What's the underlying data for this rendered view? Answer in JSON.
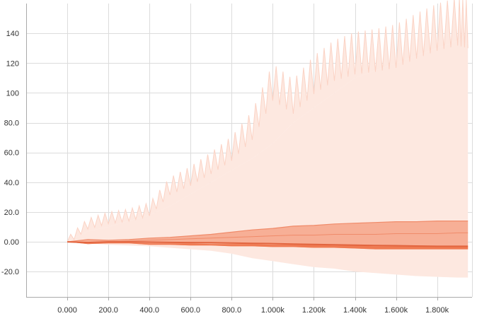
{
  "chart_data": {
    "type": "area",
    "title": "",
    "xlabel": "",
    "ylabel": "",
    "xlim": [
      -200,
      1970
    ],
    "ylim": [
      -37,
      160
    ],
    "grid": true,
    "legend": "none",
    "x_ticks": [
      {
        "value": 0,
        "label": "0.000"
      },
      {
        "value": 200,
        "label": "200.0"
      },
      {
        "value": 400,
        "label": "400.0"
      },
      {
        "value": 600,
        "label": "600.0"
      },
      {
        "value": 800,
        "label": "800.0"
      },
      {
        "value": 1000,
        "label": "1.000k"
      },
      {
        "value": 1200,
        "label": "1.200k"
      },
      {
        "value": 1400,
        "label": "1.400k"
      },
      {
        "value": 1600,
        "label": "1.600k"
      },
      {
        "value": 1800,
        "label": "1.800k"
      }
    ],
    "y_ticks": [
      {
        "value": -20,
        "label": "-20.0"
      },
      {
        "value": 0,
        "label": "0.00"
      },
      {
        "value": 20,
        "label": "20.0"
      },
      {
        "value": 40,
        "label": "40.0"
      },
      {
        "value": 60,
        "label": "60.0"
      },
      {
        "value": 80,
        "label": "80.0"
      },
      {
        "value": 100,
        "label": "100"
      },
      {
        "value": 120,
        "label": "120"
      },
      {
        "value": 140,
        "label": "140"
      }
    ],
    "colors": {
      "band_outer": "#fde8e0",
      "band_outer_edge": "#fbd3c5",
      "band_mid": "#f6a98e",
      "band_mid_edge": "#f08b6a",
      "band_inner": "#ef7a52",
      "median": "#e2653f"
    },
    "x": [
      0,
      100,
      200,
      300,
      400,
      500,
      600,
      700,
      800,
      900,
      1000,
      1100,
      1200,
      1300,
      1400,
      1500,
      1600,
      1700,
      1800,
      1900,
      1950
    ],
    "series": [
      {
        "values": [
          0,
          7,
          10,
          14,
          18,
          24,
          32,
          40,
          48,
          56,
          66,
          80,
          90,
          100,
          110,
          115,
          120,
          125,
          130,
          135,
          140
        ]
      },
      {
        "values": [
          0,
          12,
          16,
          18,
          22,
          38,
          45,
          54,
          64,
          80,
          110,
          100,
          115,
          125,
          130,
          132,
          135,
          142,
          148,
          152,
          150
        ]
      },
      {
        "values": [
          0,
          -1,
          -2,
          -2.5,
          -3,
          -4,
          -5,
          -6,
          -8,
          -11,
          -13,
          -15,
          -17,
          -18,
          -20,
          -21,
          -22,
          -23,
          -23.5,
          -24,
          -24
        ]
      },
      {
        "values": [
          0,
          1.5,
          1,
          1.5,
          2.5,
          3,
          4,
          5,
          6.5,
          8,
          9,
          10.5,
          11,
          12,
          12.5,
          13,
          13.5,
          13.5,
          14,
          14,
          14
        ]
      },
      {
        "values": [
          0,
          -0.5,
          0,
          0.5,
          1,
          1.5,
          2,
          2.5,
          3,
          3.5,
          4,
          4.5,
          4.5,
          5,
          5,
          5,
          5.5,
          5.5,
          5.5,
          6,
          6
        ]
      },
      {
        "values": [
          0,
          -1,
          -0.5,
          -0.5,
          -1,
          -1,
          -1,
          -1.5,
          -1.5,
          -1.5,
          -2,
          -2,
          -2,
          -2.5,
          -2.5,
          -3,
          -3,
          -3,
          -3,
          -3,
          -3
        ]
      },
      {
        "values": [
          0,
          -1.5,
          -1,
          -1,
          -2,
          -2,
          -2.5,
          -2.5,
          -3,
          -3,
          -3.5,
          -3.5,
          -4,
          -4,
          -4.5,
          -5,
          -5,
          -5,
          -5,
          -5,
          -5
        ]
      },
      {
        "values": [
          0,
          -0.5,
          0,
          0,
          -0.2,
          -0.4,
          -0.5,
          -0.6,
          -0.8,
          -1,
          -1.2,
          -1.5,
          -1.8,
          -2,
          -2.2,
          -2.5,
          -2.6,
          -2.8,
          -3,
          -3,
          -3
        ]
      }
    ]
  }
}
